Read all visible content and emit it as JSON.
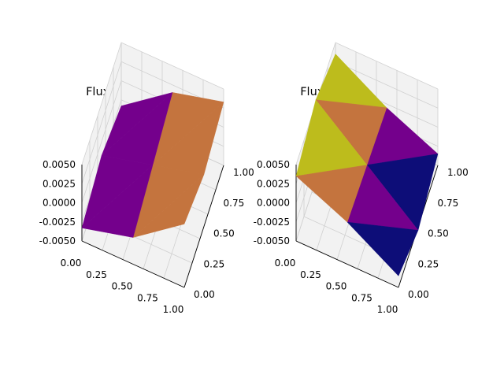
{
  "figure": {
    "background": "#ffffff",
    "pane_color": "#f2f2f2",
    "grid_color": "#d0d0d0",
    "facet_colormap": [
      "#0d0d78",
      "#74008c",
      "#c4743e",
      "#bdbc1c"
    ]
  },
  "chart_data": [
    {
      "type": "surface",
      "title": "Flux field in x-direction",
      "xlabel": "",
      "ylabel": "",
      "zlabel": "",
      "xlim": [
        0,
        1
      ],
      "ylim": [
        0,
        1
      ],
      "zlim": [
        -0.005,
        0.005
      ],
      "xticks": [
        "0.00",
        "0.25",
        "0.50",
        "0.75",
        "1.00"
      ],
      "yticks": [
        "0.00",
        "0.25",
        "0.50",
        "0.75",
        "1.00"
      ],
      "zticks": [
        "-0.0050",
        "-0.0025",
        "0.0000",
        "0.0025",
        "0.0050"
      ],
      "grid": true,
      "x": [
        0,
        0.5,
        1
      ],
      "y": [
        0,
        0.5,
        1
      ],
      "z": [
        [
          -0.0033,
          -0.0015,
          0.0033
        ],
        [
          -0.0018,
          0.0,
          0.0018
        ],
        [
          -0.0033,
          0.0015,
          0.0033
        ]
      ]
    },
    {
      "type": "surface",
      "title": "Flux field in y-direction",
      "xlabel": "",
      "ylabel": "",
      "zlabel": "",
      "xlim": [
        0,
        1
      ],
      "ylim": [
        0,
        1
      ],
      "zlim": [
        -0.005,
        0.005
      ],
      "xticks": [
        "0.00",
        "0.25",
        "0.50",
        "0.75",
        "1.00"
      ],
      "yticks": [
        "0.00",
        "0.25",
        "0.50",
        "0.75",
        "1.00"
      ],
      "zticks": [
        "-0.0050",
        "-0.0025",
        "0.0000",
        "0.0025",
        "0.0050"
      ],
      "grid": true,
      "x": [
        0,
        0.5,
        1
      ],
      "y": [
        0,
        0.5,
        1
      ],
      "z": [
        [
          0.0035,
          0.0005,
          -0.0035
        ],
        [
          0.0055,
          0.0,
          -0.0055
        ],
        [
          0.0035,
          -0.0005,
          -0.0035
        ]
      ]
    }
  ]
}
